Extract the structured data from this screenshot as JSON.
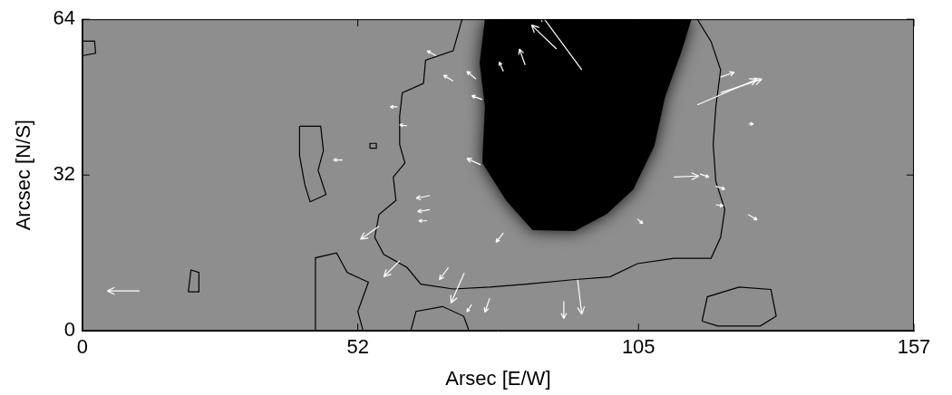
{
  "chart_data": {
    "type": "scatter",
    "xlabel": "Arsec [E/W]",
    "ylabel": "Arcsec [N/S]",
    "xlim": [
      0,
      157
    ],
    "xticks": [
      0,
      52,
      105,
      157
    ],
    "ylim": [
      0,
      64
    ],
    "yticks": [
      0,
      32,
      64
    ],
    "grid": false,
    "umbra": {
      "x": [
        76,
        75,
        76,
        75.5,
        80,
        85,
        93,
        99,
        104,
        108,
        110,
        113,
        115
      ],
      "y": [
        64,
        55,
        46,
        34.5,
        26.8,
        20.7,
        20.5,
        24,
        29,
        38,
        48,
        57,
        64
      ]
    },
    "contours": [
      {
        "x": [
          71.7,
          70.0,
          64.8,
          64.4,
          60.4,
          59.9,
          59.9,
          60.9,
          58.7,
          59.2,
          56.0,
          55.2,
          56.9,
          61.3,
          63.9,
          70.0,
          76.9,
          83.9,
          92.6,
          99.6,
          104.8,
          111.7,
          118.7,
          120.5,
          121.3,
          119.6,
          119.1,
          119.6,
          120.5,
          118.7,
          116.1
        ],
        "y": [
          64,
          57.5,
          55.6,
          50.8,
          48.9,
          44.1,
          38.3,
          34.5,
          31.6,
          26.8,
          23.9,
          19.2,
          15.7,
          13.0,
          9.6,
          8.6,
          9.0,
          9.6,
          10.5,
          11.1,
          13.8,
          14.9,
          14.9,
          19.2,
          24.9,
          30.7,
          38.3,
          46.0,
          53.6,
          59.4,
          64
        ]
      },
      {
        "x": [
          41,
          45,
          45.5,
          44.5,
          46,
          43,
          42,
          41,
          41
        ],
        "y": [
          42,
          42,
          37,
          33,
          28,
          26.5,
          30,
          36,
          42
        ]
      },
      {
        "x": [
          44,
          44,
          48,
          50,
          54,
          52,
          53
        ],
        "y": [
          0,
          15,
          16,
          12,
          10,
          4,
          0
        ]
      },
      {
        "x": [
          62,
          63,
          68,
          72,
          73
        ],
        "y": [
          0,
          4,
          5,
          3,
          0
        ]
      },
      {
        "x": [
          117,
          118,
          124,
          130,
          131,
          128,
          120,
          117
        ],
        "y": [
          2,
          7,
          9,
          8.5,
          3,
          1,
          1,
          2
        ]
      },
      {
        "x": [
          20,
          20.5,
          22,
          22,
          20
        ],
        "y": [
          8,
          12.5,
          12,
          8,
          8
        ]
      },
      {
        "x": [
          0,
          0,
          2.3,
          2.5,
          0
        ],
        "y": [
          56.5,
          59.5,
          59.5,
          57,
          56.5
        ]
      },
      {
        "x": [
          54.3,
          54.3,
          55.5,
          55.5,
          54.3
        ],
        "y": [
          37.5,
          38.5,
          38.5,
          37.5,
          37.5
        ]
      }
    ],
    "vectors": {
      "x": [
        94.3,
        89.5,
        83.6,
        79.5,
        74.3,
        75.5,
        70.0,
        66.8,
        61.3,
        59.5,
        75.2,
        116.1,
        120.5,
        120.5,
        125.8,
        111.7,
        116.6,
        119.6,
        119.6,
        125.7,
        104.8,
        65.6,
        65.6,
        65.1,
        56.0,
        59.9,
        69.1,
        72.1,
        79.5,
        93.5,
        90.9,
        76.9,
        73.5,
        10.8,
        49.1
      ],
      "y": [
        53.6,
        57.9,
        54.6,
        53.3,
        51.7,
        47.5,
        51.3,
        56.5,
        42.1,
        46.0,
        34.1,
        46.4,
        48.9,
        52.1,
        42.5,
        31.6,
        32.2,
        29.7,
        25.9,
        23.9,
        23.0,
        27.8,
        24.9,
        22.6,
        21.5,
        14.4,
        13.0,
        11.9,
        20.1,
        10.5,
        6.1,
        6.7,
        5.4,
        8.2,
        35.1
      ],
      "u": [
        -7.8,
        -4.7,
        -1.1,
        -0.8,
        -1.7,
        -2.0,
        -1.8,
        -1.7,
        -1.4,
        -1.4,
        -2.6,
        11.3,
        7.8,
        2.6,
        0.9,
        4.7,
        1.7,
        1.7,
        1.4,
        1.7,
        1.0,
        -2.6,
        -2.3,
        -1.6,
        -3.5,
        -3.0,
        -1.7,
        -2.5,
        -1.4,
        0.8,
        0,
        -0.9,
        -0.9,
        -6.1,
        -1.7
      ],
      "v": [
        11.5,
        4.9,
        3.3,
        1.9,
        1.6,
        0.8,
        1.2,
        1.0,
        0.2,
        0,
        1.3,
        5.3,
        2.8,
        1.0,
        0,
        0.2,
        -0.6,
        -0.6,
        -0.2,
        -1.1,
        -1.0,
        -0.6,
        -0.4,
        0,
        -2.7,
        -3.3,
        -2.5,
        -6.2,
        -1.9,
        -7.1,
        -3.6,
        -2.9,
        -1.5,
        0,
        0
      ]
    }
  }
}
